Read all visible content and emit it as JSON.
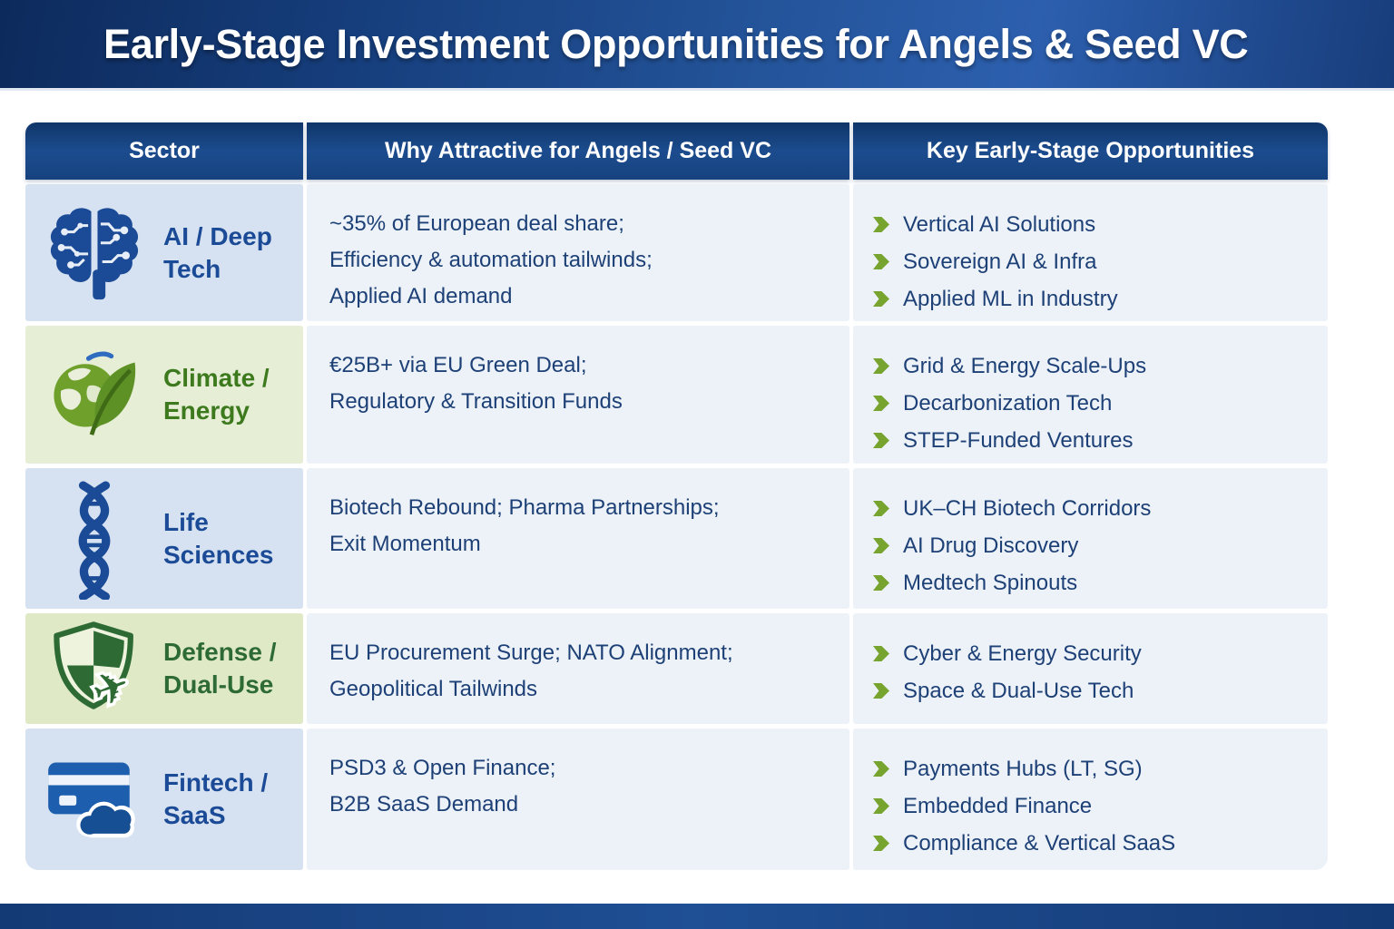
{
  "header": {
    "title": "Early-Stage Investment Opportunities for Angels & Seed VC"
  },
  "table": {
    "columns": [
      "Sector",
      "Why Attractive for Angels / Seed VC",
      "Key Early-Stage Opportunities"
    ],
    "rows": [
      {
        "sector": "AI / Deep Tech",
        "icon": "brain-circuit-icon",
        "theme": "blue",
        "why": [
          "~35% of European deal share;",
          "Efficiency & automation tailwinds;",
          "Applied AI demand"
        ],
        "opportunities": [
          "Vertical AI Solutions",
          "Sovereign AI & Infra",
          "Applied ML in Industry"
        ]
      },
      {
        "sector": "Climate / Energy",
        "icon": "globe-leaf-icon",
        "theme": "climate",
        "why": [
          "€25B+ via EU Green Deal;",
          "Regulatory & Transition Funds"
        ],
        "opportunities": [
          "Grid & Energy Scale-Ups",
          "Decarbonization Tech",
          "STEP-Funded Ventures"
        ]
      },
      {
        "sector": "Life Sciences",
        "icon": "dna-icon",
        "theme": "blue",
        "why": [
          "Biotech Rebound; Pharma Partnerships;",
          "Exit Momentum"
        ],
        "opportunities": [
          "UK–CH Biotech Corridors",
          "AI Drug Discovery",
          "Medtech Spinouts"
        ]
      },
      {
        "sector": "Defense / Dual-Use",
        "icon": "shield-plane-icon",
        "theme": "defense",
        "why": [
          "EU Procurement Surge; NATO Alignment;",
          "Geopolitical Tailwinds"
        ],
        "opportunities": [
          "Cyber & Energy Security",
          "Space & Dual-Use Tech"
        ]
      },
      {
        "sector": "Fintech / SaaS",
        "icon": "card-cloud-icon",
        "theme": "blue",
        "why": [
          "PSD3 & Open Finance;",
          "B2B SaaS Demand"
        ],
        "opportunities": [
          "Payments Hubs (LT, SG)",
          "Embedded Finance",
          "Compliance & Vertical SaaS"
        ]
      }
    ]
  },
  "colors": {
    "text_blue": "#1d4076",
    "bullet_green": "#76a42e",
    "content_bg": "#edf2f9",
    "blue_row_bg": "#d6e2f1",
    "blue_label": "#1b4a96",
    "climate_row_bg": "#e6eed6",
    "climate_label": "#3d7a1e",
    "defense_row_bg": "#dfe9c6",
    "defense_label": "#2e6b34",
    "header_bar_blue": "#1e4e94"
  }
}
